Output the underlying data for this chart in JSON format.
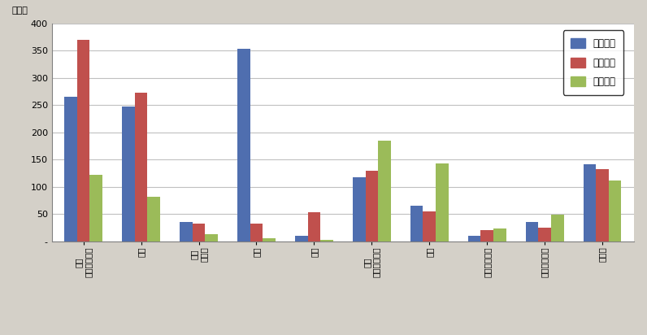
{
  "categories": [
    "就職\n･転職・転業",
    "転勤",
    "退職\n･廃業",
    "就学",
    "卒業",
    "結婚\n･離婚・縁組",
    "住宅",
    "交通の利便性",
    "生活の利便性",
    "その他"
  ],
  "series": {
    "県外転入": [
      265,
      248,
      36,
      353,
      10,
      118,
      65,
      10,
      35,
      142
    ],
    "県外転出": [
      370,
      273,
      33,
      33,
      53,
      130,
      55,
      20,
      25,
      133
    ],
    "県内移動": [
      122,
      82,
      13,
      5,
      2,
      185,
      143,
      24,
      49,
      112
    ]
  },
  "colors": {
    "県外転入": "#4F6EAF",
    "県外転出": "#C0504D",
    "県内移動": "#9BBB59"
  },
  "ylabel": "（人）",
  "ylim": [
    0,
    400
  ],
  "yticks": [
    0,
    50,
    100,
    150,
    200,
    250,
    300,
    350,
    400
  ],
  "fig_bg_color": "#D4D0C8",
  "plot_bg_color": "#FFFFFF",
  "grid_color": "#C0C0C0",
  "legend_order": [
    "県外転入",
    "県外転出",
    "県内移動"
  ],
  "bar_width": 0.22,
  "figure_width": 7.96,
  "figure_height": 4.12
}
